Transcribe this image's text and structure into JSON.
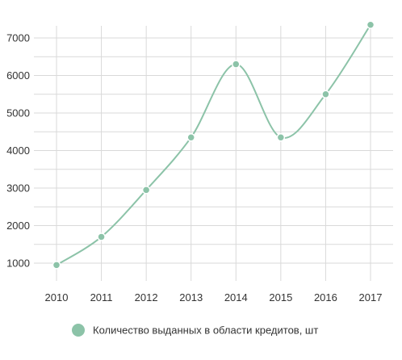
{
  "chart_data": {
    "type": "line",
    "categories": [
      "2010",
      "2011",
      "2012",
      "2013",
      "2014",
      "2015",
      "2016",
      "2017"
    ],
    "series": [
      {
        "name": "Количество выданных в области кредитов, шт",
        "values": [
          950,
          1700,
          2950,
          4350,
          6300,
          4350,
          5500,
          7350
        ],
        "color": "#8cc3a8"
      }
    ],
    "y_ticks": [
      "1000",
      "2000",
      "3000",
      "4000",
      "5000",
      "6000",
      "7000"
    ],
    "ylim": [
      500,
      7500
    ],
    "grid": true,
    "legend_position": "bottom"
  }
}
